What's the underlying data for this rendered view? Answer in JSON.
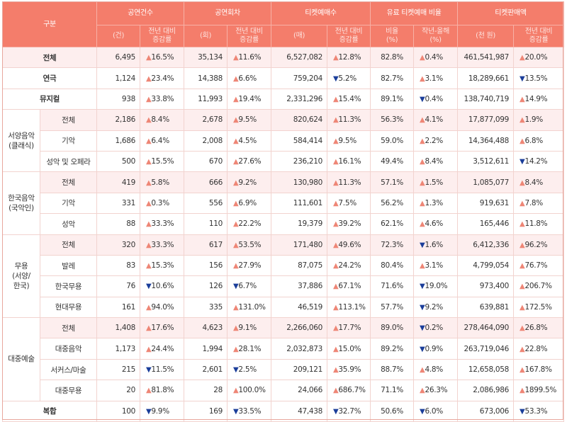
{
  "colors": {
    "header_bg": "#f47d6b",
    "highlight_bg": "#fdeeee",
    "up": "#ee8676",
    "down": "#1b3e9a"
  },
  "header": {
    "category": "구분",
    "groups": [
      "공연건수",
      "공연회차",
      "티켓예매수",
      "유료 티켓예매 비율",
      "티켓판매액"
    ],
    "subs": [
      "(건)",
      "전년 대비\n증감률",
      "(회)",
      "전년 대비\n증감률",
      "(매)",
      "전년 대비\n증감률",
      "비율\n(%)",
      "작년-올해\n(%)",
      "(천 원)",
      "전년 대비\n증감률"
    ]
  },
  "rows": [
    {
      "group": "",
      "label": "전체",
      "span": "full",
      "hl": true,
      "cells": [
        "6,495",
        "▲16.5%",
        "35,134",
        "▲11.6%",
        "6,527,082",
        "▲12.8%",
        "82.8%",
        "▲0.4%",
        "461,541,987",
        "▲20.0%"
      ]
    },
    {
      "group": "",
      "label": "연극",
      "span": "full",
      "hl": false,
      "cells": [
        "1,124",
        "▲23.4%",
        "14,388",
        "▲6.6%",
        "759,204",
        "▼5.2%",
        "82.7%",
        "▲3.1%",
        "18,289,661",
        "▼13.5%"
      ]
    },
    {
      "group": "",
      "label": "뮤지컬",
      "span": "full",
      "hl": false,
      "cells": [
        "938",
        "▲33.8%",
        "11,993",
        "▲19.4%",
        "2,331,296",
        "▲15.4%",
        "89.1%",
        "▼0.4%",
        "138,740,719",
        "▲14.9%"
      ]
    },
    {
      "group": "서양음악\n(클래식)",
      "groupRows": 3,
      "label": "전체",
      "hl": true,
      "cells": [
        "2,186",
        "▲8.4%",
        "2,678",
        "▲9.5%",
        "820,624",
        "▲11.3%",
        "56.3%",
        "▲4.1%",
        "17,877,099",
        "▲1.9%"
      ]
    },
    {
      "label": "기악",
      "hl": false,
      "cells": [
        "1,686",
        "▲6.4%",
        "2,008",
        "▲4.5%",
        "584,414",
        "▲9.5%",
        "59.0%",
        "▲2.2%",
        "14,364,488",
        "▲6.8%"
      ]
    },
    {
      "label": "성악 및 오페라",
      "hl": false,
      "cells": [
        "500",
        "▲15.5%",
        "670",
        "▲27.6%",
        "236,210",
        "▲16.1%",
        "49.4%",
        "▲8.4%",
        "3,512,611",
        "▼14.2%"
      ]
    },
    {
      "group": "한국음악\n(국악인)",
      "groupRows": 3,
      "label": "전체",
      "hl": true,
      "cells": [
        "419",
        "▲5.8%",
        "666",
        "▲9.2%",
        "130,980",
        "▲11.3%",
        "57.1%",
        "▲1.5%",
        "1,085,077",
        "▲8.4%"
      ]
    },
    {
      "label": "기악",
      "hl": false,
      "cells": [
        "331",
        "▲0.3%",
        "556",
        "▲6.9%",
        "111,601",
        "▲7.5%",
        "56.2%",
        "▲1.3%",
        "919,631",
        "▲7.8%"
      ]
    },
    {
      "label": "성악",
      "hl": false,
      "cells": [
        "88",
        "▲33.3%",
        "110",
        "▲22.2%",
        "19,379",
        "▲39.2%",
        "62.1%",
        "▲4.6%",
        "165,446",
        "▲11.8%"
      ]
    },
    {
      "group": "무용\n(서양/\n한국)",
      "groupRows": 4,
      "label": "전체",
      "hl": true,
      "cells": [
        "320",
        "▲33.3%",
        "617",
        "▲53.5%",
        "171,480",
        "▲49.6%",
        "72.3%",
        "▼1.6%",
        "6,412,336",
        "▲96.2%"
      ]
    },
    {
      "label": "발레",
      "hl": false,
      "cells": [
        "83",
        "▲15.3%",
        "156",
        "▲27.9%",
        "87,075",
        "▲24.2%",
        "80.4%",
        "▲3.1%",
        "4,799,054",
        "▲76.7%"
      ]
    },
    {
      "label": "한국무용",
      "hl": false,
      "cells": [
        "76",
        "▼10.6%",
        "126",
        "▼6.7%",
        "37,886",
        "▲67.1%",
        "71.6%",
        "▼19.0%",
        "973,400",
        "▲206.7%"
      ]
    },
    {
      "label": "현대무용",
      "hl": false,
      "cells": [
        "161",
        "▲94.0%",
        "335",
        "▲131.0%",
        "46,519",
        "▲113.1%",
        "57.7%",
        "▼9.2%",
        "639,881",
        "▲172.5%"
      ]
    },
    {
      "group": "대중예술",
      "groupRows": 4,
      "label": "전체",
      "hl": true,
      "cells": [
        "1,408",
        "▲17.6%",
        "4,623",
        "▲9.1%",
        "2,266,060",
        "▲17.7%",
        "89.0%",
        "▼0.2%",
        "278,464,090",
        "▲26.8%"
      ]
    },
    {
      "label": "대중음악",
      "hl": false,
      "cells": [
        "1,173",
        "▲24.4%",
        "1,994",
        "▲28.1%",
        "2,032,873",
        "▲15.0%",
        "89.2%",
        "▼0.9%",
        "263,719,046",
        "▲22.8%"
      ]
    },
    {
      "label": "서커스/마술",
      "hl": false,
      "cells": [
        "215",
        "▼11.5%",
        "2,601",
        "▼2.5%",
        "209,121",
        "▲35.9%",
        "88.7%",
        "▲4.8%",
        "12,658,058",
        "▲167.8%"
      ]
    },
    {
      "label": "대중무용",
      "hl": false,
      "cells": [
        "20",
        "▲81.8%",
        "28",
        "▲100.0%",
        "24,066",
        "▲686.7%",
        "71.1%",
        "▲26.3%",
        "2,086,986",
        "▲1899.5%"
      ]
    },
    {
      "group": "",
      "label": "복합",
      "span": "full",
      "hl": false,
      "cells": [
        "100",
        "▼9.9%",
        "169",
        "▼33.5%",
        "47,438",
        "▼32.7%",
        "50.6%",
        "▼6.0%",
        "673,006",
        "▼53.3%"
      ]
    }
  ]
}
